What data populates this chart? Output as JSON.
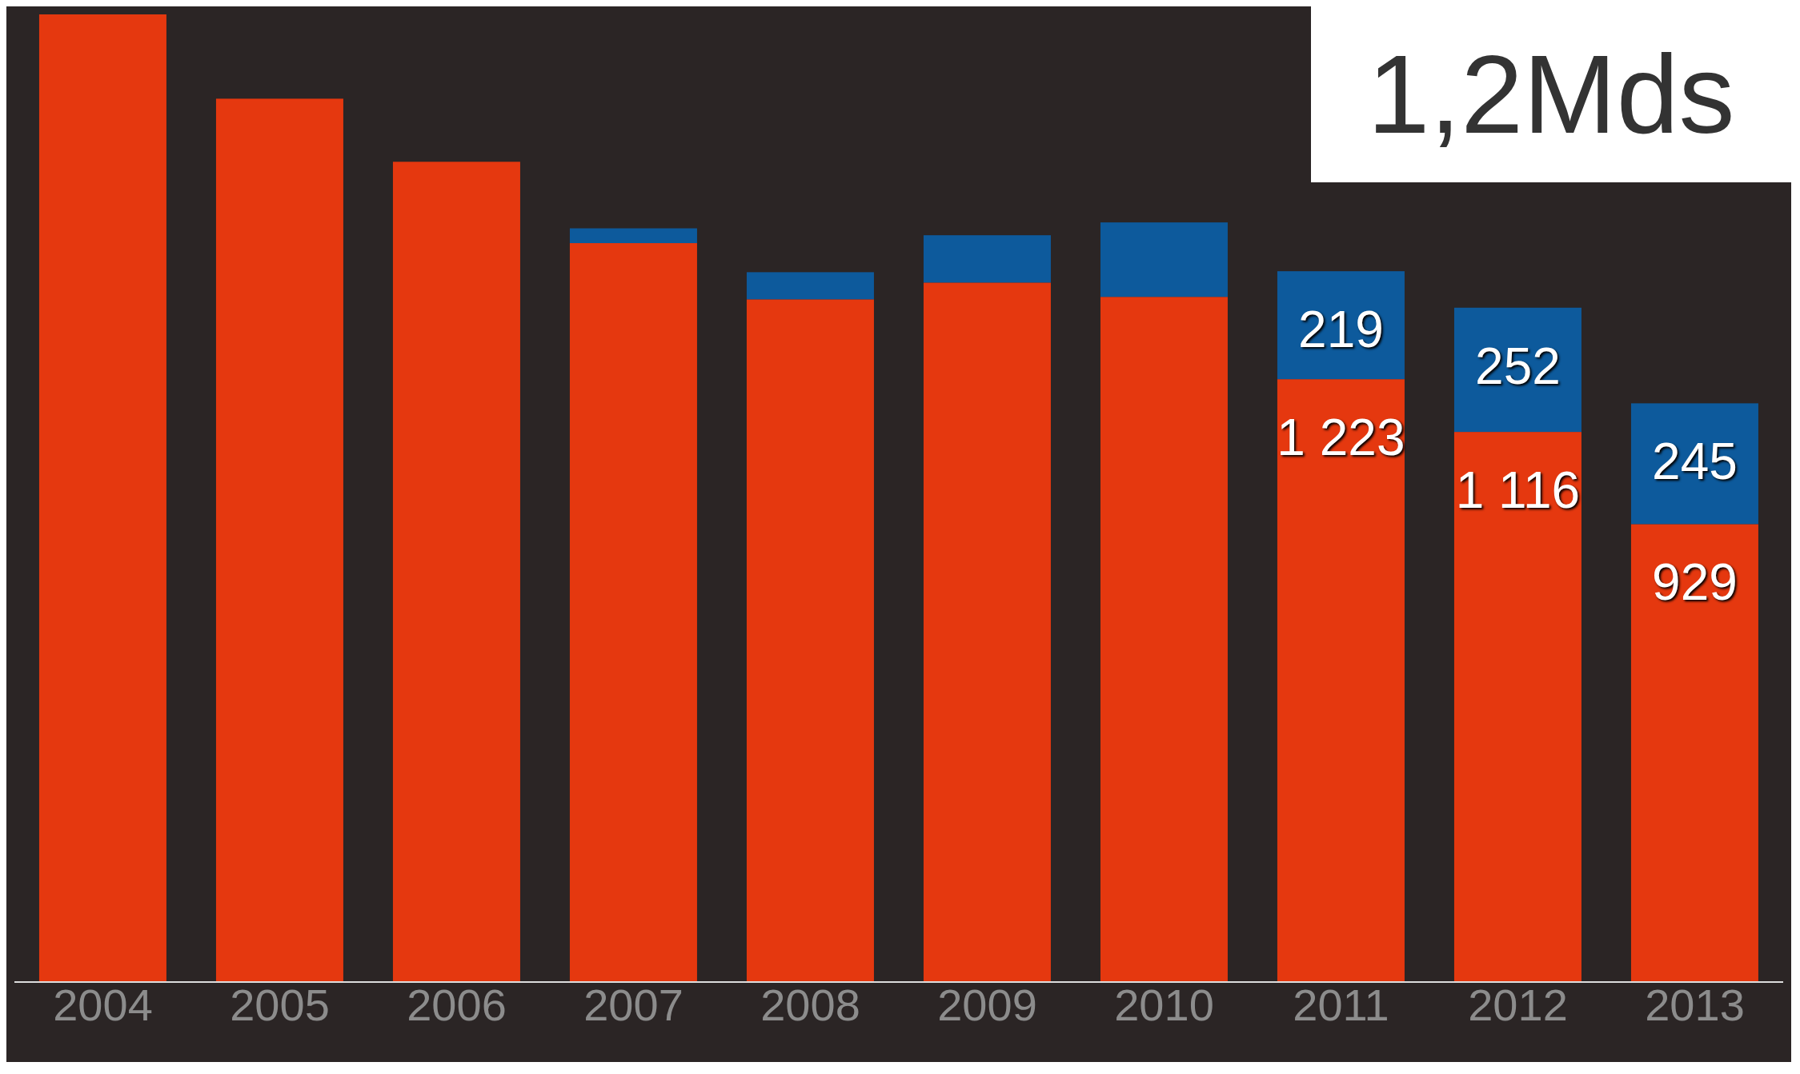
{
  "chart_data": {
    "type": "bar",
    "stacked": true,
    "categories": [
      "2004",
      "2005",
      "2006",
      "2007",
      "2008",
      "2009",
      "2010",
      "2011",
      "2012",
      "2013"
    ],
    "series": [
      {
        "color": "#e5380f",
        "values": [
          1963,
          1792,
          1664,
          1499,
          1385,
          1419,
          1390,
          1223,
          1116,
          929
        ],
        "value_labels": [
          null,
          null,
          null,
          null,
          null,
          null,
          null,
          "1 223",
          "1 116",
          "929"
        ]
      },
      {
        "color": "#0d5a9c",
        "values": [
          0,
          0,
          0,
          30,
          55,
          96,
          151,
          219,
          252,
          245
        ],
        "value_labels": [
          null,
          null,
          null,
          null,
          null,
          null,
          null,
          "219",
          "252",
          "245"
        ]
      }
    ],
    "annotations": [
      "1,2Mds"
    ],
    "legend": false,
    "grid": false
  }
}
